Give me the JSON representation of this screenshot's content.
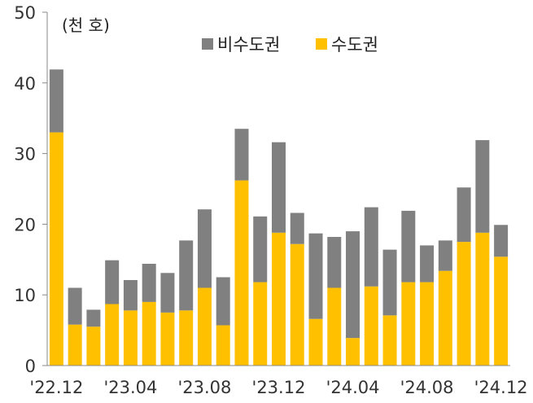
{
  "chart_data": {
    "type": "bar",
    "stacked": true,
    "unit_label": "(천 호)",
    "ylim": [
      0,
      50
    ],
    "y_ticks": [
      0,
      10,
      20,
      30,
      40,
      50
    ],
    "categories": [
      "22.12",
      "23.01",
      "23.02",
      "23.03",
      "23.04",
      "23.05",
      "23.06",
      "23.07",
      "23.08",
      "23.09",
      "23.10",
      "23.11",
      "23.12",
      "24.01",
      "24.02",
      "24.03",
      "24.04",
      "24.05",
      "24.06",
      "24.07",
      "24.08",
      "24.09",
      "24.10",
      "24.11",
      "24.12"
    ],
    "x_tick_labels": [
      {
        "index": 0,
        "label": "'22.12"
      },
      {
        "index": 4,
        "label": "'23.04"
      },
      {
        "index": 8,
        "label": "'23.08"
      },
      {
        "index": 12,
        "label": "'23.12"
      },
      {
        "index": 16,
        "label": "'24.04"
      },
      {
        "index": 20,
        "label": "'24.08"
      },
      {
        "index": 24,
        "label": "'24.12"
      }
    ],
    "legend_position": "top",
    "series": [
      {
        "name": "수도권",
        "color": "#FFC000",
        "values": [
          33.0,
          5.8,
          5.5,
          8.7,
          7.8,
          9.0,
          7.5,
          7.8,
          11.0,
          5.7,
          26.2,
          11.8,
          18.8,
          17.2,
          6.6,
          11.0,
          3.9,
          11.2,
          7.1,
          11.8,
          11.8,
          13.4,
          17.5,
          18.8,
          15.4
        ]
      },
      {
        "name": "비수도권",
        "color": "#808080",
        "values": [
          8.9,
          5.2,
          2.4,
          6.2,
          4.3,
          5.4,
          5.6,
          9.9,
          11.1,
          6.8,
          7.3,
          9.3,
          12.8,
          4.4,
          12.1,
          7.2,
          15.1,
          11.2,
          9.3,
          10.1,
          5.2,
          4.3,
          7.7,
          13.1,
          4.5
        ]
      }
    ]
  }
}
